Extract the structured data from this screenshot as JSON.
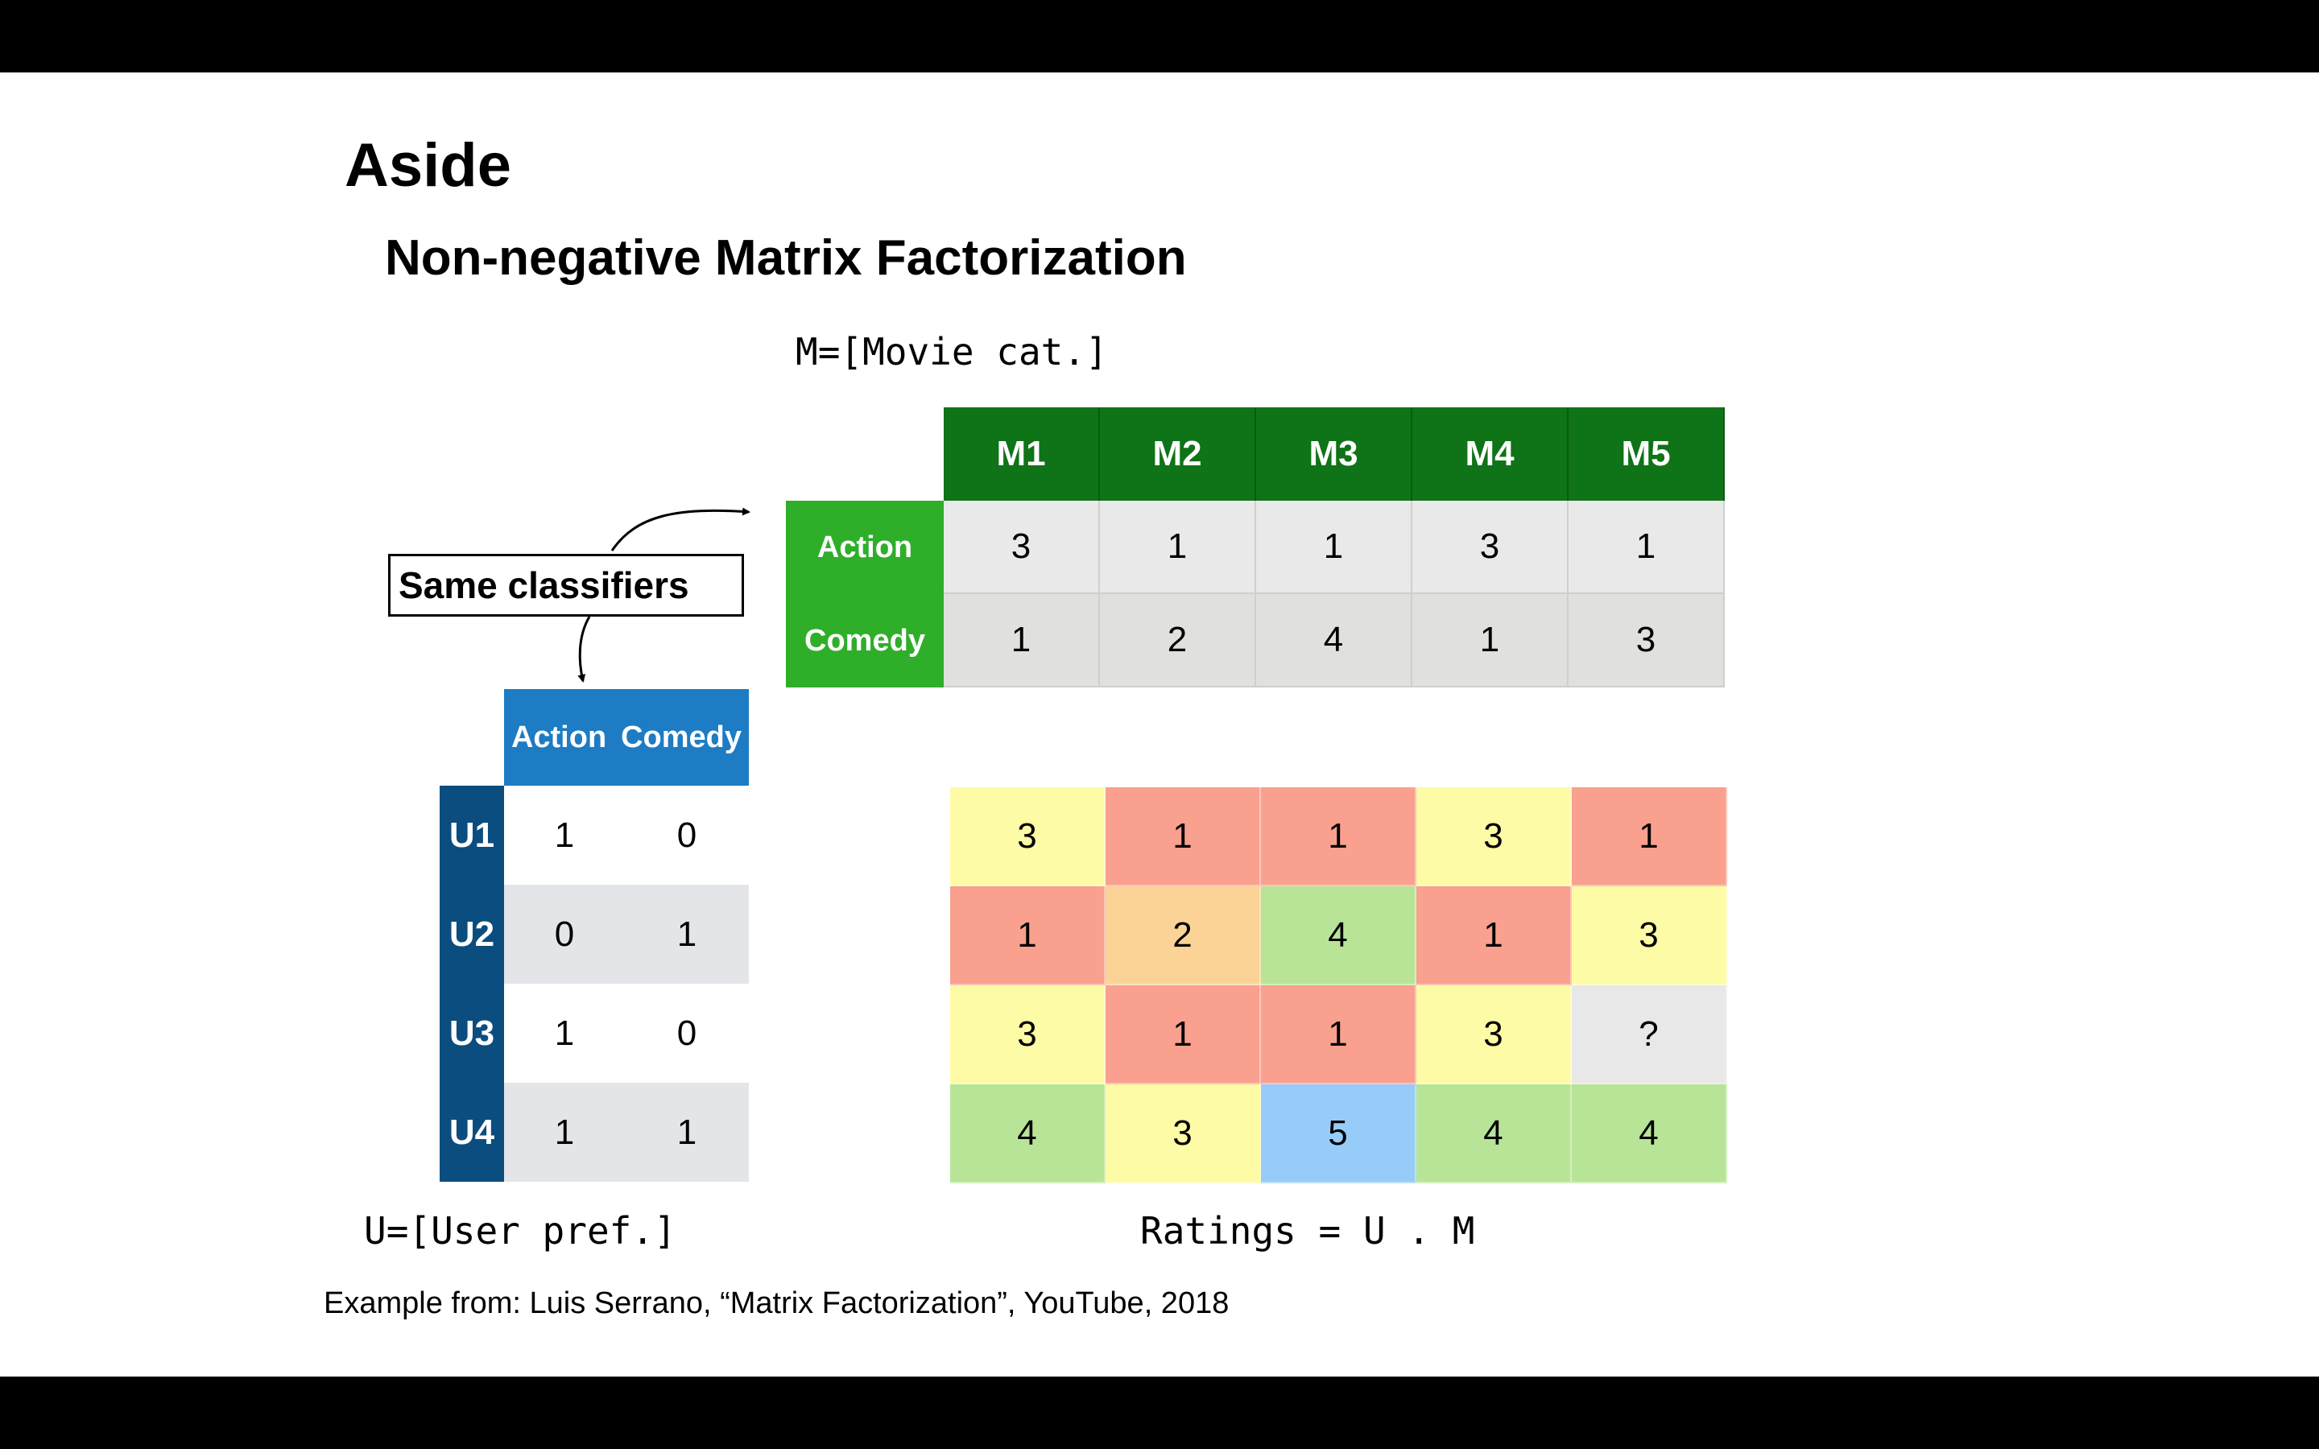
{
  "title": "Aside",
  "subtitle": "Non-negative Matrix Factorization",
  "m_label": "M=[Movie cat.]",
  "u_label": "U=[User pref.]",
  "ratings_label": "Ratings = U . M",
  "classifier_note": "Same classifiers",
  "citation": "Example from: Luis Serrano, “Matrix Factorization”, YouTube, 2018",
  "movie_matrix": {
    "columns": [
      "M1",
      "M2",
      "M3",
      "M4",
      "M5"
    ],
    "rows": [
      {
        "label": "Action",
        "values": [
          "3",
          "1",
          "1",
          "3",
          "1"
        ]
      },
      {
        "label": "Comedy",
        "values": [
          "1",
          "2",
          "4",
          "1",
          "3"
        ]
      }
    ]
  },
  "user_matrix": {
    "columns": [
      "Action",
      "Comedy"
    ],
    "rows": [
      {
        "label": "U1",
        "values": [
          "1",
          "0"
        ]
      },
      {
        "label": "U2",
        "values": [
          "0",
          "1"
        ]
      },
      {
        "label": "U3",
        "values": [
          "1",
          "0"
        ]
      },
      {
        "label": "U4",
        "values": [
          "1",
          "1"
        ]
      }
    ]
  },
  "ratings_matrix": {
    "rows": [
      [
        "3",
        "1",
        "1",
        "3",
        "1"
      ],
      [
        "1",
        "2",
        "4",
        "1",
        "3"
      ],
      [
        "3",
        "1",
        "1",
        "3",
        "?"
      ],
      [
        "4",
        "3",
        "5",
        "4",
        "4"
      ]
    ],
    "colors": {
      "1": "#f9a08f",
      "2": "#fbd396",
      "3": "#fdfba5",
      "4": "#b8e497",
      "5": "#97ccf9",
      "?": "#e8e8e8"
    }
  },
  "colors": {
    "movie_header": "#0f7318",
    "movie_row_header": "#2fae2a",
    "movie_row_1_bg": "#e9e9e9",
    "movie_row_2_bg": "#e0e0dc",
    "user_header": "#1d7cc3",
    "user_row_header": "#0b4d7e",
    "user_row_alt_bg": "#e4e5e8"
  }
}
